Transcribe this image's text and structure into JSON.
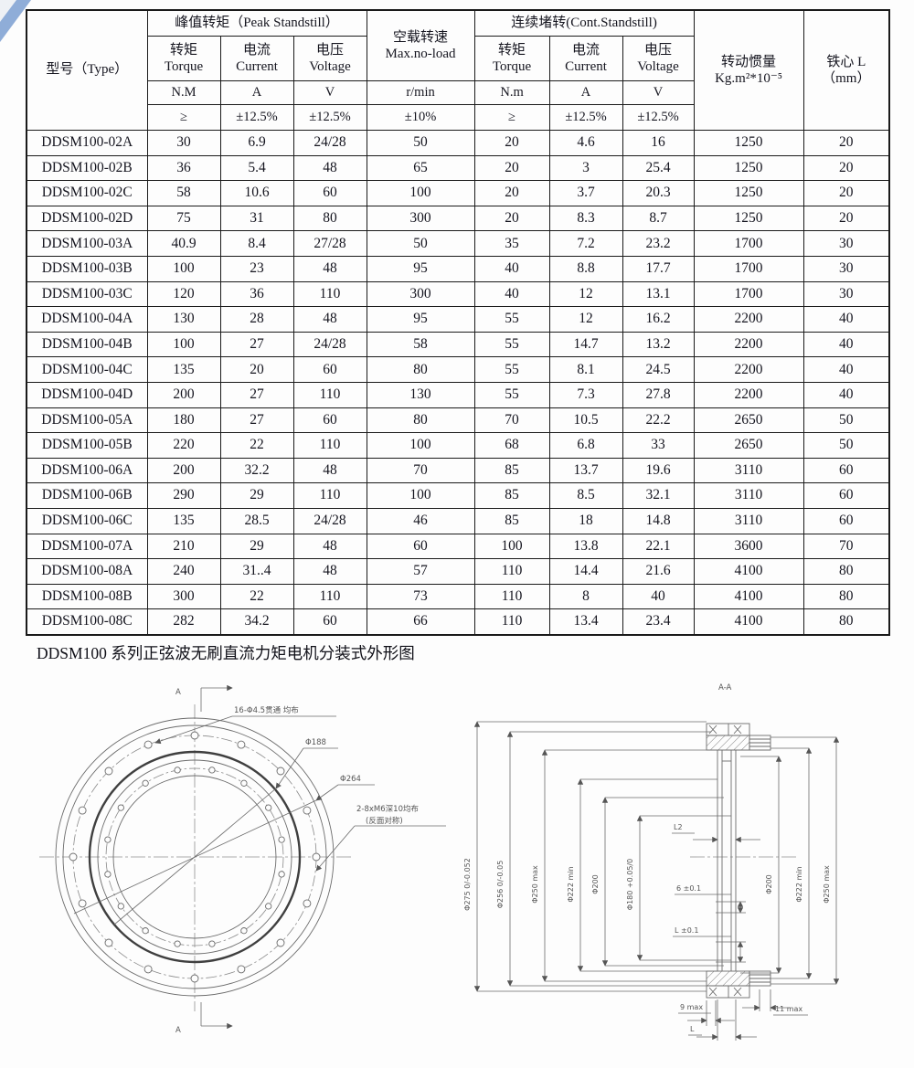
{
  "page": {
    "caption": "DDSM100 系列正弦波无刷直流力矩电机分装式外形图"
  },
  "table": {
    "header": {
      "type": "型号（Type）",
      "peak_group": "峰值转矩（Peak Standstill）",
      "noload_cn": "空载转速",
      "noload_en": "Max.no-load",
      "cont_group": "连续堵转(Cont.Standstill)",
      "torque_cn": "转矩",
      "torque_en": "Torque",
      "current_cn": "电流",
      "current_en": "Current",
      "voltage_cn": "电压",
      "voltage_en": "Voltage",
      "inertia_cn": "转动惯量",
      "inertia_unit": "Kg.m²*10⁻⁵",
      "core_cn": "铁心 L",
      "core_unit": "（mm）",
      "unit_nm_peak": "N.M",
      "unit_a_peak": "A",
      "unit_v_peak": "V",
      "unit_rpm": "r/min",
      "unit_nm_cont": "N.m",
      "unit_a_cont": "A",
      "unit_v_cont": "V",
      "tol_ge_peak": "≥",
      "tol_cur_peak": "±12.5%",
      "tol_volt_peak": "±12.5%",
      "tol_rpm": "±10%",
      "tol_ge_cont": "≥",
      "tol_cur_cont": "±12.5%",
      "tol_volt_cont": "±12.5%"
    },
    "rows": [
      [
        "DDSM100-02A",
        "30",
        "6.9",
        "24/28",
        "50",
        "20",
        "4.6",
        "16",
        "1250",
        "20"
      ],
      [
        "DDSM100-02B",
        "36",
        "5.4",
        "48",
        "65",
        "20",
        "3",
        "25.4",
        "1250",
        "20"
      ],
      [
        "DDSM100-02C",
        "58",
        "10.6",
        "60",
        "100",
        "20",
        "3.7",
        "20.3",
        "1250",
        "20"
      ],
      [
        "DDSM100-02D",
        "75",
        "31",
        "80",
        "300",
        "20",
        "8.3",
        "8.7",
        "1250",
        "20"
      ],
      [
        "DDSM100-03A",
        "40.9",
        "8.4",
        "27/28",
        "50",
        "35",
        "7.2",
        "23.2",
        "1700",
        "30"
      ],
      [
        "DDSM100-03B",
        "100",
        "23",
        "48",
        "95",
        "40",
        "8.8",
        "17.7",
        "1700",
        "30"
      ],
      [
        "DDSM100-03C",
        "120",
        "36",
        "110",
        "300",
        "40",
        "12",
        "13.1",
        "1700",
        "30"
      ],
      [
        "DDSM100-04A",
        "130",
        "28",
        "48",
        "95",
        "55",
        "12",
        "16.2",
        "2200",
        "40"
      ],
      [
        "DDSM100-04B",
        "100",
        "27",
        "24/28",
        "58",
        "55",
        "14.7",
        "13.2",
        "2200",
        "40"
      ],
      [
        "DDSM100-04C",
        "135",
        "20",
        "60",
        "80",
        "55",
        "8.1",
        "24.5",
        "2200",
        "40"
      ],
      [
        "DDSM100-04D",
        "200",
        "27",
        "110",
        "130",
        "55",
        "7.3",
        "27.8",
        "2200",
        "40"
      ],
      [
        "DDSM100-05A",
        "180",
        "27",
        "60",
        "80",
        "70",
        "10.5",
        "22.2",
        "2650",
        "50"
      ],
      [
        "DDSM100-05B",
        "220",
        "22",
        "110",
        "100",
        "68",
        "6.8",
        "33",
        "2650",
        "50"
      ],
      [
        "DDSM100-06A",
        "200",
        "32.2",
        "48",
        "70",
        "85",
        "13.7",
        "19.6",
        "3110",
        "60"
      ],
      [
        "DDSM100-06B",
        "290",
        "29",
        "110",
        "100",
        "85",
        "8.5",
        "32.1",
        "3110",
        "60"
      ],
      [
        "DDSM100-06C",
        "135",
        "28.5",
        "24/28",
        "46",
        "85",
        "18",
        "14.8",
        "3110",
        "60"
      ],
      [
        "DDSM100-07A",
        "210",
        "29",
        "48",
        "60",
        "100",
        "13.8",
        "22.1",
        "3600",
        "70"
      ],
      [
        "DDSM100-08A",
        "240",
        "31..4",
        "48",
        "57",
        "110",
        "14.4",
        "21.6",
        "4100",
        "80"
      ],
      [
        "DDSM100-08B",
        "300",
        "22",
        "110",
        "73",
        "110",
        "8",
        "40",
        "4100",
        "80"
      ],
      [
        "DDSM100-08C",
        "282",
        "34.2",
        "60",
        "66",
        "110",
        "13.4",
        "23.4",
        "4100",
        "80"
      ]
    ]
  },
  "front_view": {
    "section_marker_top": "A",
    "section_marker_bottom": "A",
    "ann_holes_outer": "16-Φ4.5贯通 均布",
    "ann_d188": "Φ188",
    "ann_d264": "Φ264",
    "ann_holes_inner_line1": "2-8xM6深10均布",
    "ann_holes_inner_line2": "(反面对称)"
  },
  "section_view": {
    "title": "A-A",
    "dims_left": [
      "Φ275 0/-0.052",
      "Φ256 0/-0.05",
      "Φ250 max",
      "Φ222 min",
      "Φ200",
      "Φ180 +0.05/0"
    ],
    "dims_right": [
      "Φ200",
      "Φ222 min",
      "Φ250 max"
    ],
    "dim_l2": "L2",
    "dim_6": "6 ±0.1",
    "dim_l01": "L ±0.1",
    "dim_9max": "9 max",
    "dim_11max": "11 max",
    "dim_l": "L"
  }
}
